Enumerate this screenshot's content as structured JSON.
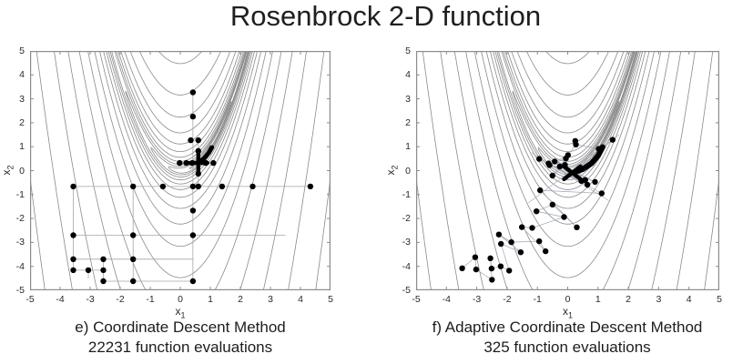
{
  "title": "Rosenbrock 2-D function",
  "colors": {
    "contour": "#8a8a8a",
    "axis": "#8c8c8c",
    "point": "#000000",
    "text": "#1d1d1d"
  },
  "chart_data": [
    {
      "type": "scatter",
      "panel": "left",
      "title": "Rosenbrock 2-D function",
      "caption_lines": [
        "e) Coordinate Descent Method",
        "22231 function evaluations"
      ],
      "xlabel_base": "x",
      "xlabel_sub": "1",
      "ylabel_base": "x",
      "ylabel_sub": "2",
      "xlim": [
        -5,
        5
      ],
      "ylim": [
        -5,
        5
      ],
      "xticks": [
        -5,
        -4,
        -3,
        -2,
        -1,
        0,
        1,
        2,
        3,
        4,
        5
      ],
      "yticks": [
        5,
        4,
        3,
        2,
        1,
        0,
        -1,
        -2,
        -3,
        -4,
        -5
      ],
      "contour_levels": [
        0.5,
        2,
        4,
        8,
        16,
        32,
        64,
        125,
        250,
        500,
        1000,
        2000,
        4000,
        8000,
        16000,
        32000,
        64000,
        128000
      ],
      "connector_color": "#a6a6a6",
      "points": [
        [
          0.42,
          3.27
        ],
        [
          0.42,
          2.26
        ],
        [
          0.35,
          1.27
        ],
        [
          0.6,
          1.27
        ],
        [
          0.6,
          0.82
        ],
        [
          0.6,
          -0.13
        ],
        [
          -0.02,
          0.32
        ],
        [
          0.2,
          0.32
        ],
        [
          0.4,
          0.32
        ],
        [
          0.85,
          0.32
        ],
        [
          1.1,
          0.32
        ],
        [
          0.42,
          -0.66
        ],
        [
          0.42,
          -1.67
        ],
        [
          0.42,
          -2.7
        ],
        [
          0.42,
          -4.62
        ],
        [
          -3.56,
          -0.66
        ],
        [
          -1.57,
          -0.66
        ],
        [
          -0.58,
          -0.66
        ],
        [
          0.6,
          -0.66
        ],
        [
          1.39,
          -0.66
        ],
        [
          2.41,
          -0.66
        ],
        [
          4.33,
          -0.66
        ],
        [
          -3.56,
          -2.7
        ],
        [
          -1.57,
          -2.7
        ],
        [
          -3.56,
          -3.7
        ],
        [
          -2.56,
          -3.7
        ],
        [
          -1.57,
          -3.7
        ],
        [
          -3.56,
          -4.16
        ],
        [
          -3.06,
          -4.16
        ],
        [
          -2.56,
          -4.16
        ],
        [
          -2.56,
          -4.62
        ],
        [
          -1.57,
          -4.62
        ]
      ],
      "segments": [
        [
          [
            0.42,
            3.27
          ],
          [
            0.42,
            -4.62
          ]
        ],
        [
          [
            -0.02,
            0.32
          ],
          [
            1.1,
            0.32
          ]
        ],
        [
          [
            -3.56,
            -0.66
          ],
          [
            4.33,
            -0.66
          ]
        ],
        [
          [
            -3.56,
            -2.7
          ],
          [
            3.5,
            -2.7
          ]
        ],
        [
          [
            -3.56,
            -3.7
          ],
          [
            0.42,
            -3.7
          ]
        ],
        [
          [
            -3.56,
            -4.16
          ],
          [
            -2.56,
            -4.16
          ]
        ],
        [
          [
            -2.56,
            -4.62
          ],
          [
            0.42,
            -4.62
          ]
        ],
        [
          [
            -3.56,
            -0.66
          ],
          [
            -3.56,
            -4.16
          ]
        ],
        [
          [
            -1.57,
            -0.66
          ],
          [
            -1.57,
            -4.62
          ]
        ],
        [
          [
            -2.56,
            -3.7
          ],
          [
            -2.56,
            -4.62
          ]
        ],
        [
          [
            -3.06,
            -4.16
          ],
          [
            -3.06,
            -4.5
          ]
        ],
        [
          [
            0.6,
            1.27
          ],
          [
            0.6,
            -0.66
          ]
        ],
        [
          [
            0.35,
            1.27
          ],
          [
            0.6,
            1.27
          ]
        ]
      ],
      "best_marker": [
        0.6,
        0.32
      ],
      "marker_style": "plus",
      "bold_path": [
        [
          0.63,
          0.35
        ],
        [
          0.8,
          0.52
        ],
        [
          0.95,
          0.75
        ],
        [
          1.05,
          0.97
        ]
      ],
      "bold_width": 5
    },
    {
      "type": "scatter",
      "panel": "right",
      "title": "Rosenbrock 2-D function",
      "caption_lines": [
        "f) Adaptive Coordinate Descent Method",
        "325 function evaluations"
      ],
      "xlabel_base": "x",
      "xlabel_sub": "1",
      "ylabel_base": "x",
      "ylabel_sub": "2",
      "xlim": [
        -5,
        5
      ],
      "ylim": [
        -5,
        5
      ],
      "xticks": [
        -5,
        -4,
        -3,
        -2,
        -1,
        0,
        1,
        2,
        3,
        4,
        5
      ],
      "yticks": [
        5,
        4,
        3,
        2,
        1,
        0,
        -1,
        -2,
        -3,
        -4,
        -5
      ],
      "contour_levels": [
        0.5,
        2,
        4,
        8,
        16,
        32,
        64,
        125,
        250,
        500,
        1000,
        2000,
        4000,
        8000,
        16000,
        32000,
        64000,
        128000
      ],
      "connector_color": "#9fa6b6",
      "points": [
        [
          -0.94,
          0.49
        ],
        [
          -0.63,
          0.3
        ],
        [
          -0.43,
          0.38
        ],
        [
          -0.26,
          0.17
        ],
        [
          -0.09,
          0.24
        ],
        [
          -0.06,
          0.51
        ],
        [
          0.01,
          0.65
        ],
        [
          0.27,
          1.09
        ],
        [
          0.25,
          1.24
        ],
        [
          1.02,
          0.91
        ],
        [
          1.48,
          1.29
        ],
        [
          -0.6,
          0.23
        ],
        [
          -0.5,
          -0.21
        ],
        [
          0.45,
          -0.43
        ],
        [
          0.58,
          -0.39
        ],
        [
          0.9,
          -0.47
        ],
        [
          0.65,
          -0.59
        ],
        [
          1.12,
          -0.95
        ],
        [
          -0.91,
          -0.82
        ],
        [
          -0.5,
          -1.42
        ],
        [
          -1.03,
          -1.7
        ],
        [
          -0.12,
          -1.94
        ],
        [
          0.3,
          -2.37
        ],
        [
          -1.17,
          -2.39
        ],
        [
          -1.51,
          -2.36
        ],
        [
          -2.27,
          -2.67
        ],
        [
          -1.86,
          -2.99
        ],
        [
          -0.94,
          -2.95
        ],
        [
          -0.73,
          -3.37
        ],
        [
          -1.55,
          -3.41
        ],
        [
          -2.2,
          -3.06
        ],
        [
          -3.05,
          -3.62
        ],
        [
          -2.55,
          -3.66
        ],
        [
          -2.21,
          -4.0
        ],
        [
          -2.51,
          -4.09
        ],
        [
          -1.93,
          -4.18
        ],
        [
          -3.02,
          -4.13
        ],
        [
          -3.48,
          -4.08
        ],
        [
          -2.5,
          -4.56
        ]
      ],
      "path": [
        [
          -3.48,
          -4.08
        ],
        [
          -3.05,
          -3.62
        ],
        [
          -3.02,
          -4.13
        ],
        [
          -2.5,
          -4.56
        ],
        [
          -2.55,
          -3.66
        ],
        [
          -2.51,
          -4.09
        ],
        [
          -2.21,
          -4.0
        ],
        [
          -1.93,
          -4.18
        ],
        [
          -2.2,
          -3.06
        ],
        [
          -1.55,
          -3.41
        ],
        [
          -2.27,
          -2.67
        ],
        [
          -1.86,
          -2.99
        ],
        [
          -0.94,
          -2.95
        ],
        [
          -0.73,
          -3.37
        ],
        [
          -1.51,
          -2.36
        ],
        [
          -1.17,
          -2.39
        ],
        [
          -0.12,
          -1.94
        ],
        [
          -1.03,
          -1.7
        ],
        [
          -0.5,
          -1.42
        ],
        [
          0.3,
          -2.37
        ],
        [
          -0.91,
          -0.82
        ],
        [
          1.12,
          -0.95
        ],
        [
          -0.94,
          0.49
        ],
        [
          0.45,
          -0.43
        ],
        [
          -0.63,
          0.3
        ],
        [
          0.58,
          -0.39
        ],
        [
          -0.43,
          0.38
        ],
        [
          0.9,
          -0.47
        ],
        [
          -0.26,
          0.17
        ],
        [
          0.65,
          -0.59
        ],
        [
          -0.09,
          0.24
        ],
        [
          -0.5,
          -0.21
        ],
        [
          -0.06,
          0.51
        ],
        [
          -0.6,
          0.23
        ],
        [
          0.01,
          0.65
        ],
        [
          0.27,
          1.09
        ],
        [
          1.02,
          0.91
        ],
        [
          0.17,
          -0.09
        ],
        [
          1.48,
          1.29
        ]
      ],
      "extra_lines": [
        [
          [
            -1.2,
            0.75
          ],
          [
            1.35,
            -1.25
          ]
        ],
        [
          [
            1.7,
            1.5
          ],
          [
            -1.3,
            -1.35
          ]
        ]
      ],
      "best_marker": [
        0.15,
        -0.09
      ],
      "marker_style": "x",
      "bold_path": [
        [
          0.22,
          -0.06
        ],
        [
          0.5,
          0.06
        ],
        [
          0.78,
          0.3
        ],
        [
          1.0,
          0.62
        ],
        [
          1.15,
          0.99
        ]
      ],
      "bold_width": 6
    }
  ]
}
